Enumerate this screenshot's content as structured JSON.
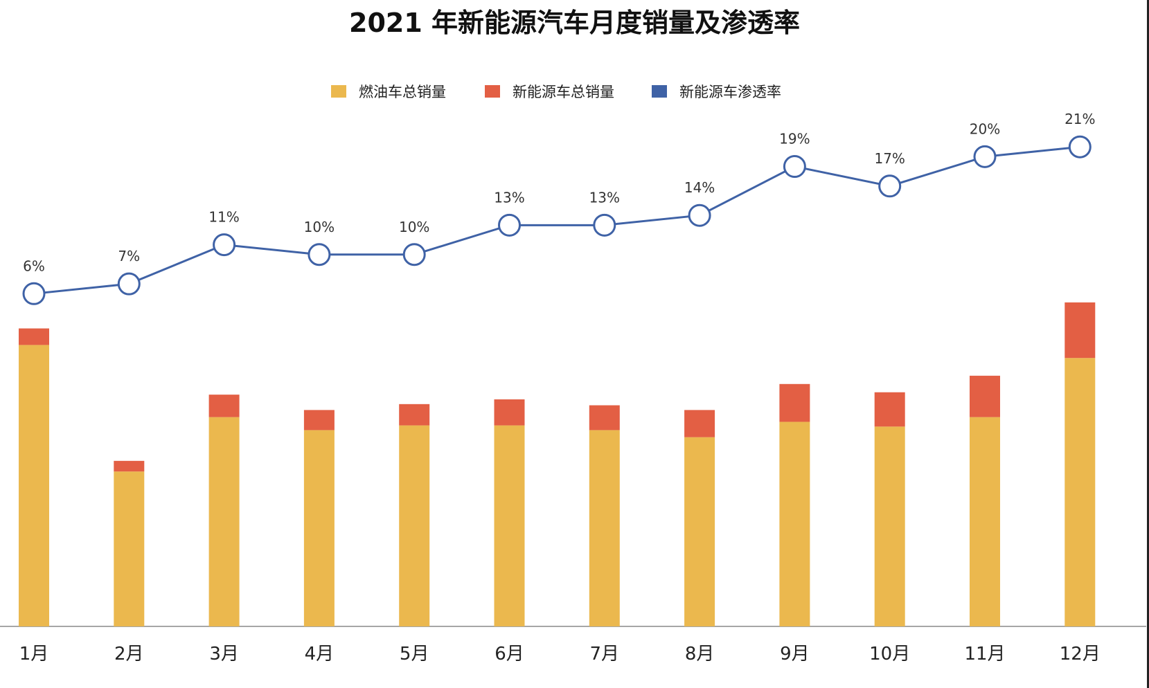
{
  "chart_data": {
    "type": "bar",
    "title": "2021 年新能源汽车月度销量及渗透率",
    "categories": [
      "1月",
      "2月",
      "3月",
      "4月",
      "5月",
      "6月",
      "7月",
      "8月",
      "9月",
      "10月",
      "11月",
      "12月"
    ],
    "series": [
      {
        "name": "燃油车总销量",
        "kind": "bar",
        "stack": "total",
        "color": "#EBB84E",
        "values": [
          2.38,
          1.31,
          1.77,
          1.66,
          1.7,
          1.7,
          1.66,
          1.6,
          1.73,
          1.69,
          1.77,
          2.27
        ]
      },
      {
        "name": "新能源车总销量",
        "kind": "bar",
        "stack": "total",
        "color": "#E35F44",
        "values": [
          0.14,
          0.09,
          0.19,
          0.17,
          0.18,
          0.22,
          0.21,
          0.23,
          0.32,
          0.29,
          0.35,
          0.47
        ]
      },
      {
        "name": "新能源车渗透率",
        "kind": "line",
        "color": "#3F62A6",
        "values": [
          6,
          7,
          11,
          10,
          10,
          13,
          13,
          14,
          19,
          17,
          20,
          21
        ],
        "labels": [
          "6%",
          "7%",
          "11%",
          "10%",
          "10%",
          "13%",
          "13%",
          "14%",
          "19%",
          "17%",
          "20%",
          "21%"
        ]
      }
    ],
    "ylim_bars": [
      0,
      4.8
    ],
    "ylim_line": [
      -28,
      30
    ],
    "grid": false,
    "legend_position": "top-center"
  }
}
